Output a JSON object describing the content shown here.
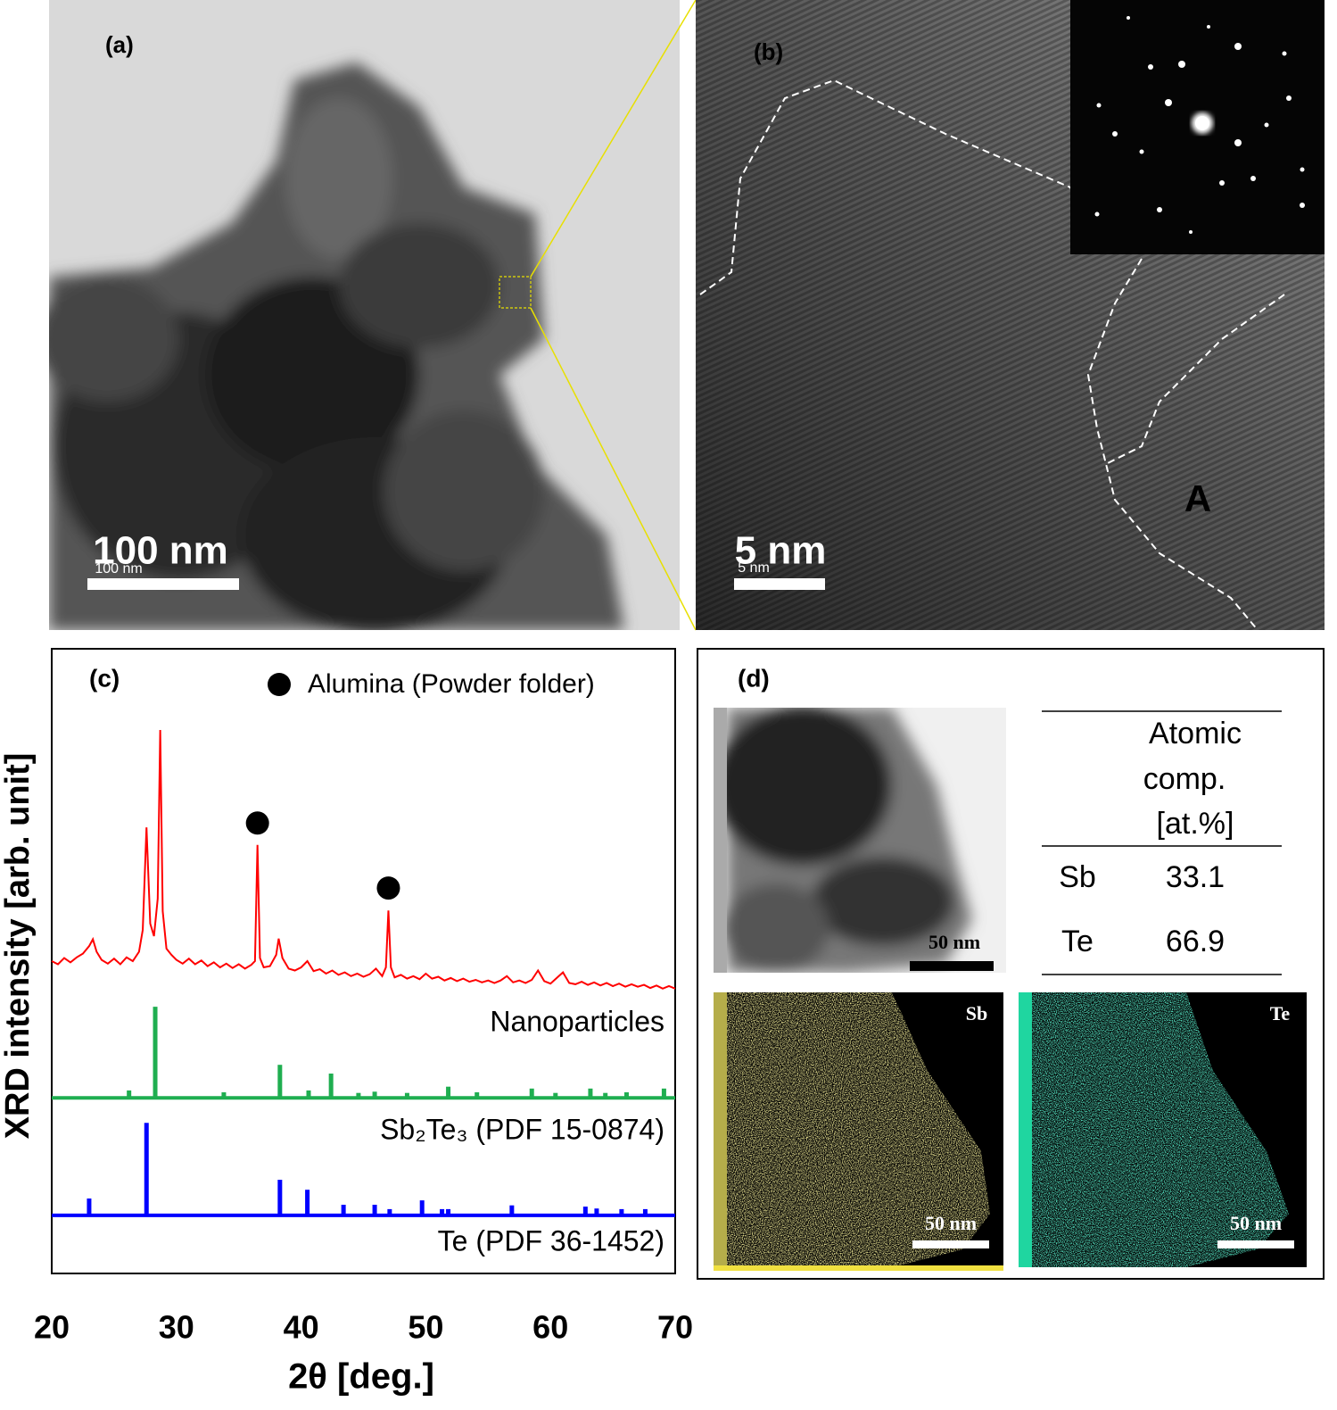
{
  "panel_a": {
    "label": "(a)",
    "scale_bar": "100 nm",
    "scale_bar_small": "100 nm"
  },
  "panel_b": {
    "label": "(b)",
    "scale_bar": "5 nm",
    "scale_bar_small": "5 nm",
    "region_label": "A"
  },
  "chart_data": {
    "type": "line",
    "panel_label": "(c)",
    "xlabel": "2θ [deg.]",
    "ylabel": "XRD intensity [arb. unit]",
    "xlim": [
      20,
      70
    ],
    "ylim": [
      0,
      100
    ],
    "xticks": [
      20,
      30,
      40,
      50,
      60,
      70
    ],
    "series": [
      {
        "name": "Nanoparticles",
        "color": "#ff0000",
        "style": "line",
        "x": [
          20,
          20.5,
          21,
          21.5,
          22,
          22.5,
          23,
          23.3,
          23.6,
          24,
          24.5,
          25,
          25.5,
          26,
          26.5,
          27,
          27.3,
          27.6,
          27.9,
          28.2,
          28.5,
          28.7,
          28.9,
          29.2,
          29.6,
          30,
          30.5,
          31,
          31.5,
          32,
          32.5,
          33,
          33.5,
          34,
          34.5,
          35,
          35.5,
          36,
          36.3,
          36.5,
          36.7,
          37,
          37.5,
          38,
          38.2,
          38.5,
          39,
          39.5,
          40,
          40.5,
          41,
          41.5,
          42,
          42.5,
          43,
          43.5,
          44,
          44.5,
          45,
          45.5,
          46,
          46.5,
          46.8,
          47,
          47.2,
          47.5,
          48,
          48.5,
          49,
          49.5,
          50,
          50.5,
          51,
          51.5,
          52,
          52.5,
          53,
          53.5,
          54,
          54.5,
          55,
          55.5,
          56,
          56.5,
          57,
          57.5,
          58,
          58.5,
          59,
          59.5,
          60,
          60.5,
          61,
          61.5,
          62,
          62.5,
          63,
          63.5,
          64,
          64.5,
          65,
          65.5,
          66,
          66.5,
          67,
          67.5,
          68,
          68.5,
          69,
          69.5,
          70
        ],
        "values": [
          50,
          49.5,
          50.5,
          49.8,
          50.6,
          51.2,
          52.4,
          53.5,
          51.5,
          50.2,
          49.6,
          50.4,
          49.5,
          50.6,
          50,
          51.5,
          55,
          71.4,
          56,
          54,
          60,
          87,
          58,
          52,
          51,
          50.2,
          49.6,
          50.4,
          49.5,
          50.1,
          49.2,
          49.8,
          49,
          49.6,
          48.9,
          49.5,
          48.8,
          49.4,
          50,
          68.6,
          50.5,
          49,
          49.2,
          51,
          53.6,
          50.5,
          48.8,
          48.5,
          49,
          50,
          48.4,
          48.7,
          48,
          48.5,
          47.8,
          48.2,
          47.6,
          48,
          47.5,
          47.9,
          48.8,
          47.6,
          49,
          58.1,
          49,
          47.4,
          47.8,
          47.2,
          47.6,
          47.1,
          48,
          47.2,
          47.5,
          46.9,
          47.3,
          46.8,
          47.2,
          46.7,
          47,
          46.6,
          46.9,
          46.5,
          46.9,
          47.6,
          46.6,
          46.9,
          46.5,
          47,
          48.5,
          46.8,
          46.4,
          47.3,
          48.2,
          46.5,
          46.3,
          46.7,
          46.2,
          46.6,
          46.1,
          46.5,
          46,
          46.4,
          45.9,
          46.3,
          45.9,
          46.2,
          45.7,
          46.1,
          45.6,
          46,
          45.6
        ]
      },
      {
        "name": "Sb₂Te₃ (PDF 15-0874)",
        "color": "#1fae50",
        "style": "sticks",
        "baseline": 28.1,
        "x": [
          26.2,
          28.3,
          33.8,
          38.3,
          40.6,
          42.4,
          44.6,
          45.9,
          48.5,
          51.8,
          54.1,
          58.5,
          60.4,
          63.2,
          64.4,
          66.1,
          69.1
        ],
        "values": [
          29.3,
          42.7,
          29,
          33.4,
          29.3,
          32,
          28.9,
          29.1,
          28.9,
          29.9,
          29,
          29.6,
          28.9,
          29.6,
          28.9,
          29,
          29.6
        ]
      },
      {
        "name": "Te (PDF 36-1452)",
        "color": "#0000ff",
        "style": "sticks",
        "baseline": 9.3,
        "x": [
          23.0,
          27.6,
          38.3,
          40.5,
          43.4,
          45.9,
          47.1,
          49.7,
          51.3,
          51.8,
          56.9,
          62.8,
          63.7,
          65.7,
          67.6
        ],
        "values": [
          12,
          24.1,
          15,
          13.4,
          11,
          11,
          10.3,
          11.7,
          10.3,
          10.3,
          10.9,
          10.7,
          10.4,
          10.3,
          10.3
        ]
      }
    ],
    "markers": {
      "name": "Alumina (Powder folder)",
      "color": "#000000",
      "x": [
        36.5,
        47.0
      ],
      "values": [
        72.1,
        61.7
      ]
    }
  },
  "panel_d": {
    "label": "(d)",
    "image_scale_bar": "50 nm",
    "table": {
      "header": [
        "Atomic",
        "comp.",
        "[at.%]"
      ],
      "rows": [
        [
          "Sb",
          33.1
        ],
        [
          "Te",
          66.9
        ]
      ]
    },
    "maps": [
      {
        "label": "Sb",
        "scale_bar": "50 nm"
      },
      {
        "label": "Te",
        "scale_bar": "50 nm"
      }
    ]
  }
}
